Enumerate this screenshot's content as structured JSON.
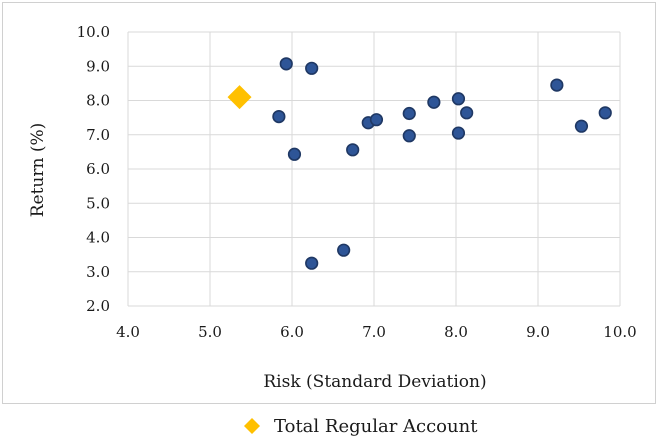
{
  "chart_data": {
    "type": "scatter",
    "xlabel": "Risk (Standard Deviation)",
    "ylabel": "Return (%)",
    "xlim": [
      4.0,
      10.0
    ],
    "ylim": [
      2.0,
      10.0
    ],
    "x_ticks": [
      "4.0",
      "5.0",
      "6.0",
      "7.0",
      "8.0",
      "9.0",
      "10.0"
    ],
    "y_ticks": [
      "2.0",
      "3.0",
      "4.0",
      "5.0",
      "6.0",
      "7.0",
      "8.0",
      "9.0",
      "10.0"
    ],
    "grid": true,
    "legend_position": "bottom",
    "series": [
      {
        "marker": "circle",
        "color": "#2E5597",
        "points": [
          {
            "x": 5.93,
            "y": 9.07
          },
          {
            "x": 6.24,
            "y": 8.94
          },
          {
            "x": 5.84,
            "y": 7.53
          },
          {
            "x": 6.03,
            "y": 6.43
          },
          {
            "x": 6.24,
            "y": 3.25
          },
          {
            "x": 6.63,
            "y": 3.63
          },
          {
            "x": 6.74,
            "y": 6.56
          },
          {
            "x": 6.93,
            "y": 7.35
          },
          {
            "x": 7.03,
            "y": 7.44
          },
          {
            "x": 7.43,
            "y": 7.62
          },
          {
            "x": 7.43,
            "y": 6.97
          },
          {
            "x": 7.73,
            "y": 7.95
          },
          {
            "x": 8.03,
            "y": 8.05
          },
          {
            "x": 8.13,
            "y": 7.64
          },
          {
            "x": 8.03,
            "y": 7.05
          },
          {
            "x": 9.23,
            "y": 8.45
          },
          {
            "x": 9.53,
            "y": 7.25
          },
          {
            "x": 9.82,
            "y": 7.64
          }
        ]
      },
      {
        "name": "Total Regular Account",
        "marker": "diamond",
        "color": "#FFC000",
        "points": [
          {
            "x": 5.36,
            "y": 8.1
          }
        ]
      }
    ]
  }
}
